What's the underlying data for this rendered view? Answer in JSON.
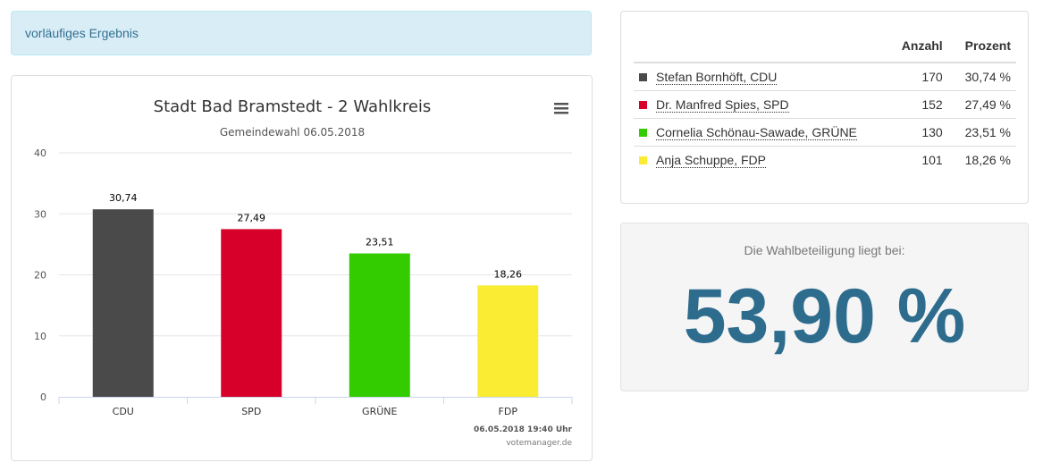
{
  "status": {
    "label": "vorläufiges Ergebnis"
  },
  "chart_data": {
    "type": "bar",
    "title": "Stadt Bad Bramstedt - 2 Wahlkreis",
    "subtitle": "Gemeindewahl 06.05.2018",
    "categories": [
      "CDU",
      "SPD",
      "GRÜNE",
      "FDP"
    ],
    "values": [
      30.74,
      27.49,
      23.51,
      18.26
    ],
    "data_labels": [
      "30,74",
      "27,49",
      "23,51",
      "18,26"
    ],
    "colors": [
      "#4a4a4a",
      "#d6002a",
      "#33cc00",
      "#faeb33"
    ],
    "ylim": [
      0,
      40
    ],
    "yticks": [
      0,
      10,
      20,
      30,
      40
    ],
    "grid": true,
    "legend": "none",
    "xlabel": "",
    "ylabel": "",
    "credit_time": "06.05.2018 19:40 Uhr",
    "credit_source": "votemanager.de"
  },
  "results": {
    "headers": {
      "anzahl": "Anzahl",
      "prozent": "Prozent"
    },
    "rows": [
      {
        "name": "Stefan Bornhöft, CDU",
        "count": "170",
        "percent": "30,74 %",
        "color": "#4a4a4a"
      },
      {
        "name": "Dr. Manfred Spies, SPD",
        "count": "152",
        "percent": "27,49 %",
        "color": "#d6002a"
      },
      {
        "name": "Cornelia Schönau-Sawade, GRÜNE",
        "count": "130",
        "percent": "23,51 %",
        "color": "#33cc00"
      },
      {
        "name": "Anja Schuppe, FDP",
        "count": "101",
        "percent": "18,26 %",
        "color": "#faeb33"
      }
    ]
  },
  "turnout": {
    "label": "Die Wahlbeteiligung liegt bei:",
    "value": "53,90 %"
  }
}
